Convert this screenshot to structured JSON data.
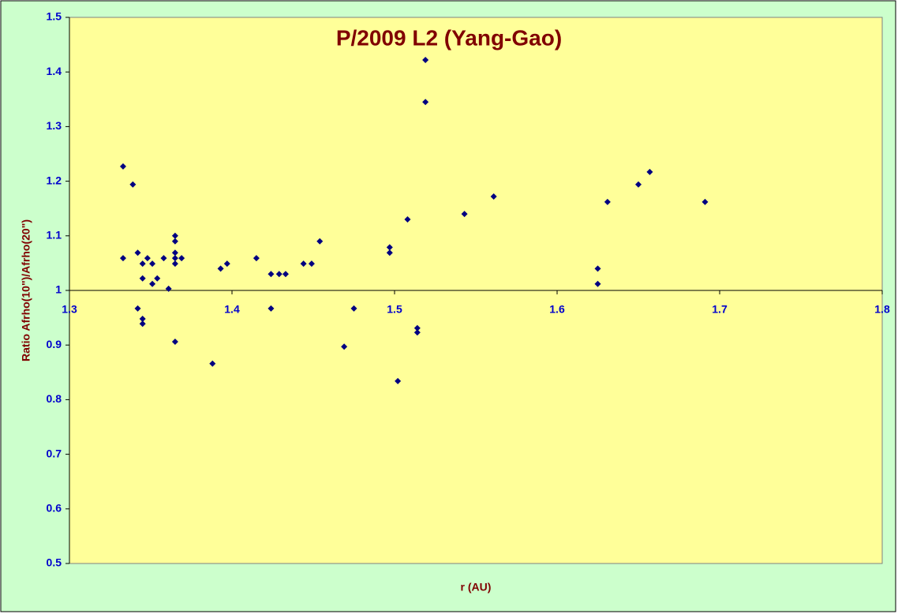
{
  "chart_data": {
    "type": "scatter",
    "title": "P/2009 L2 (Yang-Gao)",
    "x_label": "r (AU)",
    "y_label": "Ratio Afrho(10\")/Afrho(20\")",
    "x": [
      1.333,
      1.333,
      1.339,
      1.342,
      1.342,
      1.345,
      1.345,
      1.345,
      1.345,
      1.348,
      1.351,
      1.351,
      1.354,
      1.358,
      1.361,
      1.365,
      1.365,
      1.365,
      1.365,
      1.365,
      1.365,
      1.369,
      1.388,
      1.393,
      1.397,
      1.415,
      1.424,
      1.424,
      1.429,
      1.433,
      1.444,
      1.449,
      1.454,
      1.469,
      1.475,
      1.497,
      1.497,
      1.502,
      1.508,
      1.514,
      1.514,
      1.519,
      1.519,
      1.543,
      1.561,
      1.625,
      1.625,
      1.631,
      1.65,
      1.657,
      1.691
    ],
    "values": [
      1.227,
      1.059,
      1.194,
      1.069,
      0.967,
      1.049,
      1.022,
      0.948,
      0.939,
      1.059,
      1.049,
      1.012,
      1.022,
      1.059,
      1.003,
      1.1,
      1.09,
      1.069,
      1.059,
      1.049,
      0.906,
      1.059,
      0.866,
      1.04,
      1.049,
      1.059,
      1.03,
      0.967,
      1.03,
      1.03,
      1.049,
      1.049,
      1.09,
      0.897,
      0.967,
      1.079,
      1.069,
      0.834,
      1.13,
      0.931,
      0.923,
      1.422,
      1.345,
      1.14,
      1.172,
      1.04,
      1.012,
      1.162,
      1.194,
      1.217,
      1.162
    ],
    "color": "#000080",
    "xlim": [
      1.3,
      1.8
    ],
    "xticks": [
      1.3,
      1.4,
      1.5,
      1.6,
      1.7,
      1.8
    ],
    "ylim": [
      0.5,
      1.5
    ],
    "yticks": [
      0.5,
      0.6,
      0.7,
      0.8,
      0.9,
      1,
      1.1,
      1.2,
      1.3,
      1.4,
      1.5
    ]
  }
}
